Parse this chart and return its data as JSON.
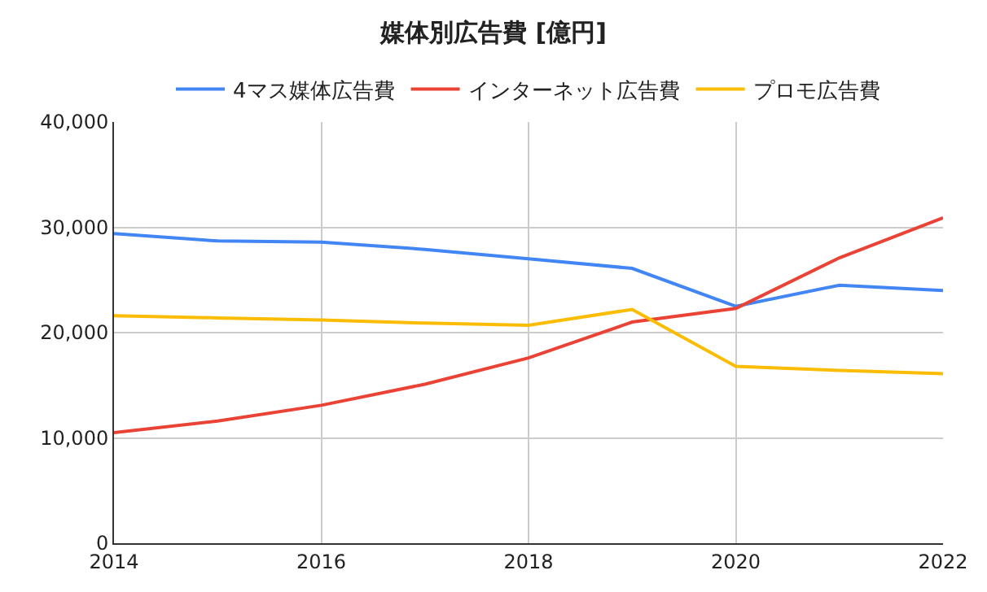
{
  "chart_data": {
    "type": "line",
    "title": "媒体別広告費 [億円]",
    "x": [
      2014,
      2015,
      2016,
      2017,
      2018,
      2019,
      2020,
      2021,
      2022
    ],
    "series": [
      {
        "name": "4マス媒体広告費",
        "color": "#4285f4",
        "values": [
          29400,
          28700,
          28600,
          27900,
          27000,
          26100,
          22500,
          24500,
          24000
        ]
      },
      {
        "name": "インターネット広告費",
        "color": "#ea4335",
        "values": [
          10500,
          11600,
          13100,
          15100,
          17600,
          21000,
          22300,
          27100,
          30900
        ]
      },
      {
        "name": "プロモ広告費",
        "color": "#fbbc04",
        "values": [
          21600,
          21400,
          21200,
          20900,
          20700,
          22200,
          16800,
          16400,
          16100
        ]
      }
    ],
    "xlim": [
      2014,
      2022
    ],
    "xticks": [
      2014,
      2016,
      2018,
      2020,
      2022
    ],
    "ylim": [
      0,
      40000
    ],
    "yticks": [
      {
        "value": 0,
        "label": "0"
      },
      {
        "value": 10000,
        "label": "10,000"
      },
      {
        "value": 20000,
        "label": "20,000"
      },
      {
        "value": 30000,
        "label": "30,000"
      },
      {
        "value": 40000,
        "label": "40,000"
      }
    ],
    "grid": true,
    "legend": "top",
    "marker": "none",
    "line_style": "solid"
  }
}
